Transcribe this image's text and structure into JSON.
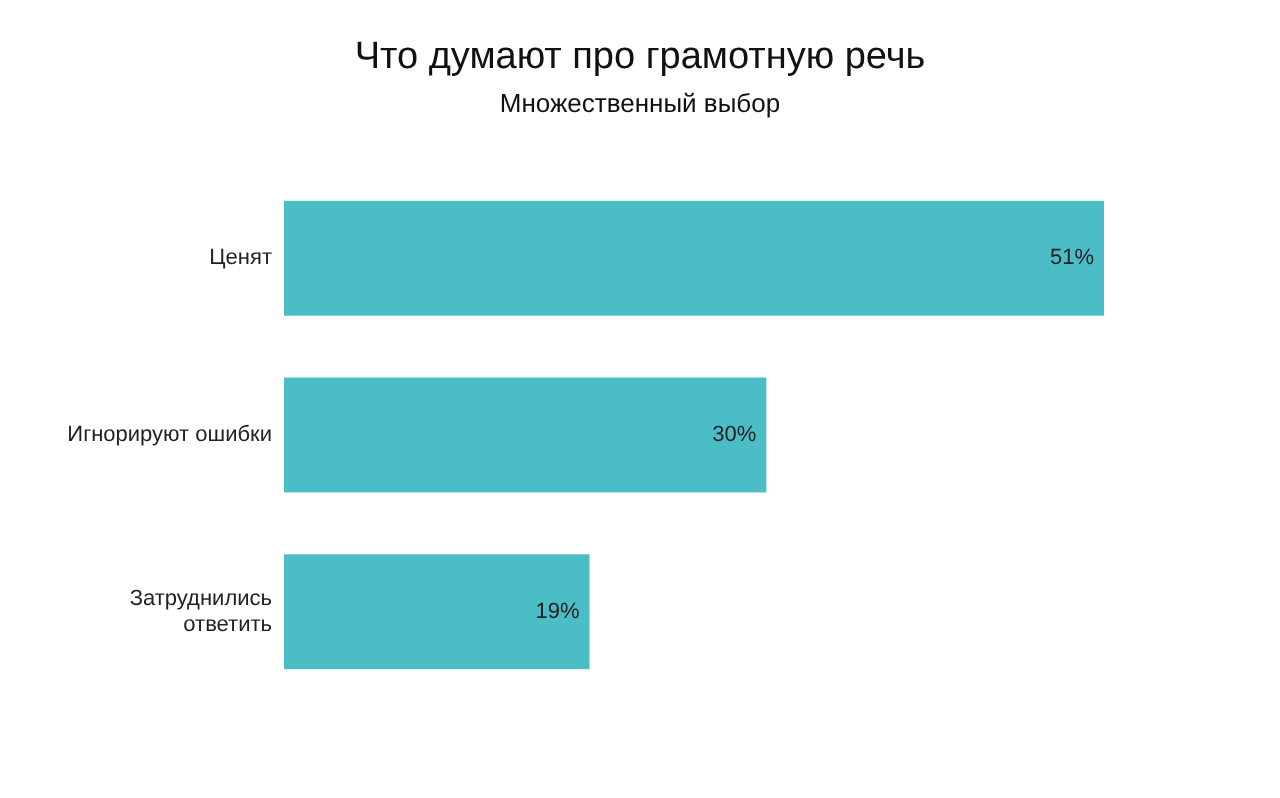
{
  "chart_data": {
    "type": "bar",
    "orientation": "horizontal",
    "title": "Что думают про грамотную речь",
    "subtitle": "Множественный выбор",
    "categories": [
      "Ценят",
      "Игнорируют ошибки",
      "Затруднились ответить"
    ],
    "values": [
      51,
      30,
      19
    ],
    "value_labels": [
      "51%",
      "30%",
      "19%"
    ],
    "color": "#4bbdc6"
  }
}
